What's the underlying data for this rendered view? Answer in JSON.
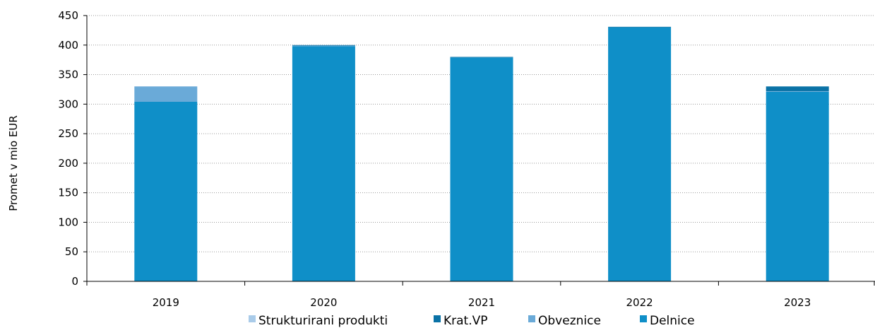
{
  "chart_data": {
    "type": "bar",
    "stacked": true,
    "categories": [
      "2019",
      "2020",
      "2021",
      "2022",
      "2023"
    ],
    "series": [
      {
        "name": "Delnice",
        "color": "#0f8fc8",
        "values": [
          304,
          398,
          379,
          430,
          321
        ]
      },
      {
        "name": "Obveznice",
        "color": "#6aaad8",
        "values": [
          26,
          1,
          0,
          0,
          1
        ]
      },
      {
        "name": "Krat.VP",
        "color": "#0a72a6",
        "values": [
          0,
          1,
          1,
          1,
          8
        ]
      },
      {
        "name": "Strukturirani produkti",
        "color": "#a9cbe9",
        "values": [
          0,
          0,
          0,
          0,
          0
        ]
      }
    ],
    "legend_order": [
      "Strukturirani produkti",
      "Krat.VP",
      "Obveznice",
      "Delnice"
    ],
    "ylabel": "Promet v mio EUR",
    "xlabel": "",
    "ylim": [
      0,
      450
    ],
    "yticks": [
      0,
      50,
      100,
      150,
      200,
      250,
      300,
      350,
      400,
      450
    ],
    "grid": true,
    "legend_position": "bottom"
  }
}
